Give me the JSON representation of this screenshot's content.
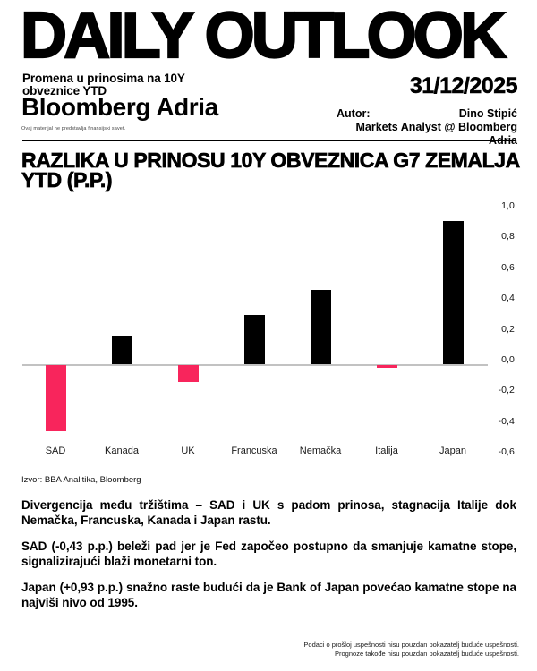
{
  "header": {
    "title": "DAILY OUTLOOK",
    "subtitle_line1": "Promena u prinosima na 10Y",
    "subtitle_line2": "obveznice YTD",
    "date": "31/12/2025",
    "brand": "Bloomberg Adria",
    "brand_disclaimer": "Ovaj materijal ne predstavlja finansijski savet.",
    "author_label": "Autor:",
    "author_name": "Dino Stipić",
    "author_role": "Markets Analyst @ Bloomberg Adria"
  },
  "chart": {
    "title_line1": "RAZLIKA U PRINOSU 10Y OBVEZNICA G7 ZEMALJA",
    "title_line2": "YTD (P.P.)",
    "source": "Izvor: BBA Analitika, Bloomberg"
  },
  "chart_data": {
    "type": "bar",
    "title": "RAZLIKA U PRINOSU 10Y OBVEZNICA G7 ZEMALJA YTD (P.P.)",
    "categories": [
      "SAD",
      "Kanada",
      "UK",
      "Francuska",
      "Nemačka",
      "Italija",
      "Japan"
    ],
    "values": [
      -0.43,
      0.18,
      -0.11,
      0.32,
      0.48,
      -0.02,
      0.93
    ],
    "xlabel": "",
    "ylabel": "",
    "ylim": [
      -0.6,
      1.0
    ],
    "ytick_step": 0.2,
    "ytick_labels": [
      "1,0",
      "0,8",
      "0,6",
      "0,4",
      "0,2",
      "0,0",
      "-0,2",
      "-0,4",
      "-0,6"
    ],
    "grid": false,
    "legend": false,
    "ytick_side": "right",
    "positive_color": "#000000",
    "negative_color": "#f8255c",
    "axis_color": "#c2c2c2"
  },
  "commentary": {
    "p1": "Divergencija među tržištima – SAD i UK s padom prinosa, stagnacija Italije dok Nemačka, Francuska, Kanada i Japan rastu.",
    "p2": "SAD (-0,43 p.p.) beleži pad jer je Fed započeo postupno da smanjuje kamatne stope, signalizirajući blaži monetarni ton.",
    "p3": "Japan (+0,93 p.p.) snažno raste budući da je Bank of Japan povećao kamatne stope na najviši nivo od 1995."
  },
  "footer": {
    "line1": "Podaci o prošloj uspešnosti nisu pouzdan pokazatelj buduće uspešnosti.",
    "line2": "Prognoze takođe nisu pouzdan pokazatelj buduće uspešnosti."
  }
}
